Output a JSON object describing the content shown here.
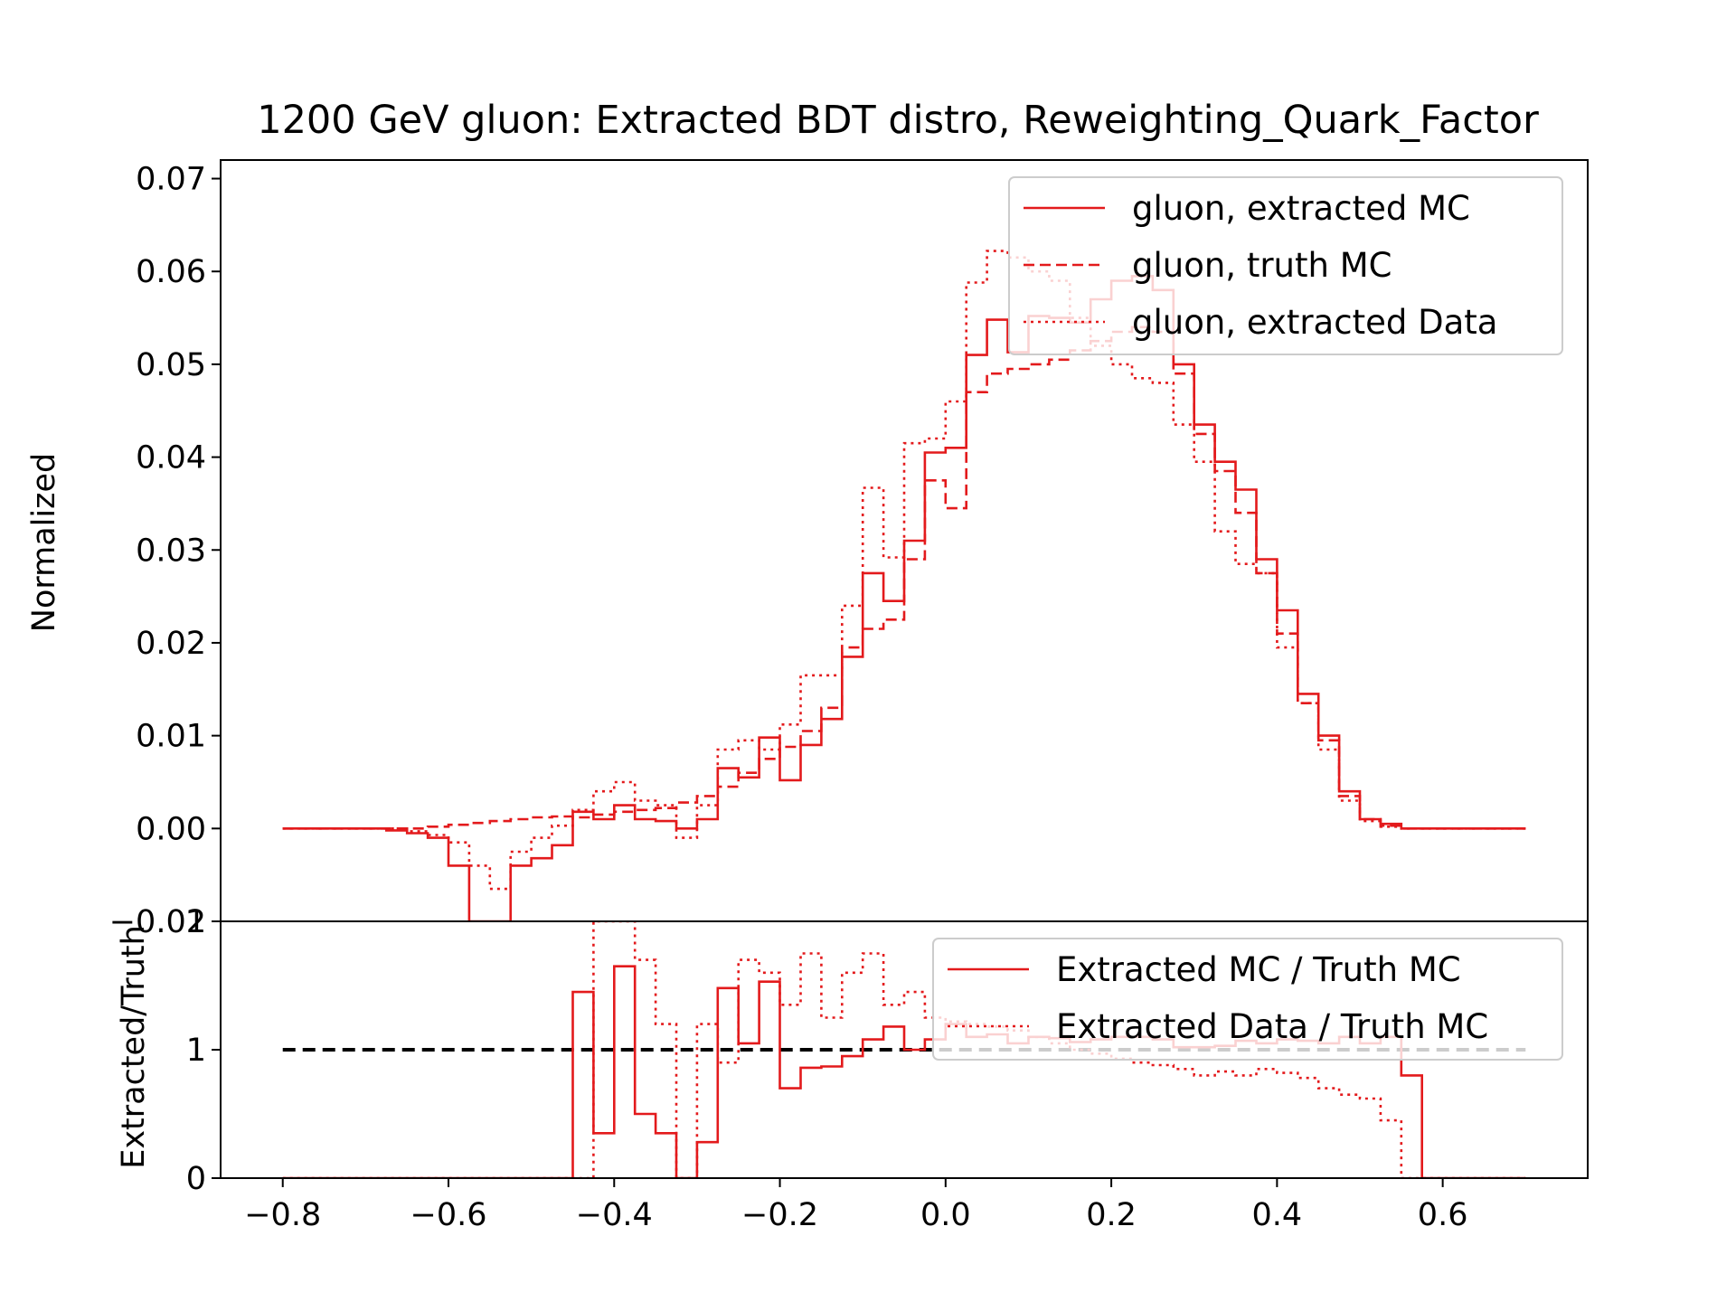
{
  "chart_data": [
    {
      "type": "line",
      "panel": "main",
      "title": "1200 GeV gluon: Extracted BDT distro, Reweighting_Quark_Factor",
      "xlabel": "",
      "ylabel": "Normalized",
      "xlim": [
        -0.875,
        0.775
      ],
      "ylim": [
        -0.01,
        0.072
      ],
      "xticks": [
        -0.8,
        -0.6,
        -0.4,
        -0.2,
        0.0,
        0.2,
        0.4,
        0.6
      ],
      "xtick_labels": [
        "−0.8",
        "−0.6",
        "−0.4",
        "−0.2",
        "0.0",
        "0.2",
        "0.4",
        "0.6"
      ],
      "yticks": [
        -0.01,
        0.0,
        0.01,
        0.02,
        0.03,
        0.04,
        0.05,
        0.06,
        0.07
      ],
      "ytick_labels": [
        "−0.01",
        "0.00",
        "0.01",
        "0.02",
        "0.03",
        "0.04",
        "0.05",
        "0.06",
        "0.07"
      ],
      "legend_position": "top-right",
      "step_style": "histogram",
      "bin_edges": [
        -0.8,
        -0.775,
        -0.75,
        -0.725,
        -0.7,
        -0.675,
        -0.65,
        -0.625,
        -0.6,
        -0.575,
        -0.55,
        -0.525,
        -0.5,
        -0.475,
        -0.45,
        -0.425,
        -0.4,
        -0.375,
        -0.35,
        -0.325,
        -0.3,
        -0.275,
        -0.25,
        -0.225,
        -0.2,
        -0.175,
        -0.15,
        -0.125,
        -0.1,
        -0.075,
        -0.05,
        -0.025,
        0.0,
        0.025,
        0.05,
        0.075,
        0.1,
        0.125,
        0.15,
        0.175,
        0.2,
        0.225,
        0.25,
        0.275,
        0.3,
        0.325,
        0.35,
        0.375,
        0.4,
        0.425,
        0.45,
        0.475,
        0.5,
        0.525,
        0.55,
        0.575,
        0.6,
        0.625,
        0.65,
        0.675,
        0.7
      ],
      "series": [
        {
          "name": "gluon, extracted MC",
          "dash": "solid",
          "color": "#e31a1c",
          "values": [
            0.0,
            0.0,
            0.0,
            0.0,
            0.0,
            -0.0002,
            -0.0005,
            -0.001,
            -0.004,
            -0.012,
            -0.012,
            -0.004,
            -0.0032,
            -0.0018,
            0.0018,
            0.001,
            0.0025,
            0.001,
            0.0008,
            0.0,
            0.001,
            0.0065,
            0.0055,
            0.0098,
            0.0052,
            0.009,
            0.0118,
            0.0185,
            0.0275,
            0.0245,
            0.031,
            0.0405,
            0.041,
            0.051,
            0.0548,
            0.0513,
            0.0552,
            0.055,
            0.0545,
            0.057,
            0.059,
            0.0595,
            0.058,
            0.05,
            0.0435,
            0.0395,
            0.0365,
            0.029,
            0.0235,
            0.0145,
            0.01,
            0.004,
            0.001,
            0.0005,
            0.0,
            0.0,
            0.0,
            0.0,
            0.0,
            0.0
          ]
        },
        {
          "name": "gluon, truth MC",
          "dash": "dashed",
          "color": "#e31a1c",
          "values": [
            0.0,
            0.0,
            0.0,
            0.0,
            0.0,
            0.0,
            0.0,
            0.0002,
            0.0004,
            0.0006,
            0.0008,
            0.001,
            0.0012,
            0.0013,
            0.0012,
            0.0015,
            0.0018,
            0.002,
            0.0022,
            0.0028,
            0.0035,
            0.0045,
            0.006,
            0.0075,
            0.0088,
            0.0105,
            0.013,
            0.0195,
            0.0215,
            0.0225,
            0.029,
            0.0375,
            0.0345,
            0.047,
            0.049,
            0.0495,
            0.05,
            0.0505,
            0.0515,
            0.0525,
            0.0535,
            0.054,
            0.0535,
            0.049,
            0.0425,
            0.0385,
            0.034,
            0.0275,
            0.021,
            0.0135,
            0.0095,
            0.0035,
            0.001,
            0.0003,
            0.0,
            0.0,
            0.0,
            0.0,
            0.0,
            0.0
          ]
        },
        {
          "name": "gluon, extracted Data",
          "dash": "dotted",
          "color": "#e31a1c",
          "values": [
            0.0,
            0.0,
            0.0,
            0.0,
            0.0,
            0.0,
            -0.0003,
            -0.0007,
            -0.0015,
            -0.004,
            -0.0065,
            -0.0025,
            -0.001,
            0.0003,
            0.002,
            0.004,
            0.005,
            0.003,
            0.0025,
            -0.001,
            0.0025,
            0.0085,
            0.0095,
            0.0085,
            0.0112,
            0.0165,
            0.0165,
            0.024,
            0.0367,
            0.0292,
            0.0415,
            0.042,
            0.046,
            0.0588,
            0.0622,
            0.0615,
            0.06,
            0.059,
            0.055,
            0.052,
            0.05,
            0.0485,
            0.048,
            0.0435,
            0.0395,
            0.032,
            0.0285,
            0.0275,
            0.0195,
            0.0135,
            0.0085,
            0.003,
            0.0008,
            0.0002,
            0.0,
            0.0,
            0.0,
            0.0,
            0.0,
            0.0
          ]
        }
      ]
    },
    {
      "type": "line",
      "panel": "ratio",
      "title": "",
      "xlabel": "",
      "ylabel": "Extracted/Truth",
      "xlim": [
        -0.875,
        0.775
      ],
      "ylim": [
        0,
        2
      ],
      "yticks": [
        0,
        1,
        2
      ],
      "ytick_labels": [
        "0",
        "1",
        "2"
      ],
      "legend_position": "top-right",
      "reference_line": {
        "y": 1,
        "x_from": -0.8,
        "x_to": 0.7,
        "color": "#000000",
        "dash": "dashed"
      },
      "bin_edges": [
        -0.8,
        -0.775,
        -0.75,
        -0.725,
        -0.7,
        -0.675,
        -0.65,
        -0.625,
        -0.6,
        -0.575,
        -0.55,
        -0.525,
        -0.5,
        -0.475,
        -0.45,
        -0.425,
        -0.4,
        -0.375,
        -0.35,
        -0.325,
        -0.3,
        -0.275,
        -0.25,
        -0.225,
        -0.2,
        -0.175,
        -0.15,
        -0.125,
        -0.1,
        -0.075,
        -0.05,
        -0.025,
        0.0,
        0.025,
        0.05,
        0.075,
        0.1,
        0.125,
        0.15,
        0.175,
        0.2,
        0.225,
        0.25,
        0.275,
        0.3,
        0.325,
        0.35,
        0.375,
        0.4,
        0.425,
        0.45,
        0.475,
        0.5,
        0.525,
        0.55,
        0.575,
        0.6,
        0.625,
        0.65,
        0.675,
        0.7
      ],
      "series": [
        {
          "name": "Extracted MC / Truth MC",
          "dash": "solid",
          "color": "#e31a1c",
          "values": [
            0.0,
            0.0,
            0.0,
            0.0,
            0.0,
            0.0,
            0.0,
            0.0,
            0.0,
            0.0,
            0.0,
            0.0,
            0.0,
            0.0,
            1.45,
            0.35,
            1.65,
            0.5,
            0.35,
            0.0,
            0.28,
            1.48,
            1.05,
            1.53,
            0.7,
            0.86,
            0.87,
            0.95,
            1.08,
            1.18,
            1.0,
            1.08,
            1.2,
            1.1,
            1.12,
            1.05,
            1.1,
            1.09,
            1.06,
            1.08,
            1.1,
            1.1,
            1.08,
            1.02,
            1.02,
            1.03,
            1.07,
            1.05,
            1.08,
            1.07,
            1.05,
            1.1,
            1.05,
            1.1,
            0.8,
            0.0,
            0.0,
            0.0,
            0.0,
            0.0
          ]
        },
        {
          "name": "Extracted Data / Truth MC",
          "dash": "dotted",
          "color": "#e31a1c",
          "values": [
            0.0,
            0.0,
            0.0,
            0.0,
            0.0,
            0.0,
            0.0,
            0.0,
            0.0,
            0.0,
            0.0,
            0.0,
            0.0,
            0.0,
            0.0,
            2.0,
            2.0,
            1.7,
            1.2,
            0.0,
            1.2,
            0.9,
            1.7,
            1.6,
            1.35,
            1.75,
            1.25,
            1.6,
            1.75,
            1.35,
            1.45,
            1.25,
            1.22,
            1.2,
            1.18,
            1.15,
            1.1,
            1.05,
            1.0,
            0.97,
            0.93,
            0.9,
            0.88,
            0.85,
            0.8,
            0.83,
            0.8,
            0.85,
            0.82,
            0.78,
            0.7,
            0.65,
            0.62,
            0.45,
            0.0,
            0.0,
            0.0,
            0.0,
            0.0,
            0.0
          ]
        }
      ]
    }
  ]
}
